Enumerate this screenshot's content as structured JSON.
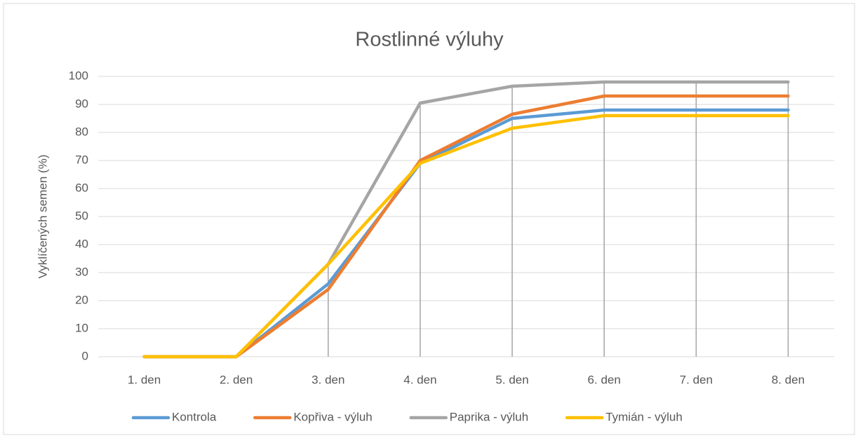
{
  "chart_data": {
    "type": "line",
    "title": "Rostlinné výluhy",
    "y_label": "Vyklíčených semen (%)",
    "categories": [
      "1. den",
      "2. den",
      "3. den",
      "4. den",
      "5. den",
      "6. den",
      "7. den",
      "8. den"
    ],
    "series": [
      {
        "name": "Kontrola",
        "color": "#5b9bd5",
        "values": [
          0,
          0,
          26,
          69,
          85,
          88,
          88,
          88
        ]
      },
      {
        "name": "Kopřiva - výluh",
        "color": "#ed7d31",
        "values": [
          0,
          0,
          24,
          70,
          86.5,
          93,
          93,
          93
        ]
      },
      {
        "name": "Paprika - výluh",
        "color": "#a5a5a5",
        "values": [
          0,
          0,
          33,
          90.5,
          96.5,
          98,
          98,
          98
        ]
      },
      {
        "name": "Tymián - výluh",
        "color": "#ffc000",
        "values": [
          0,
          0,
          33,
          69,
          81.5,
          86,
          86,
          86
        ]
      }
    ],
    "ylim": [
      0,
      100
    ],
    "yticks": [
      0,
      10,
      20,
      30,
      40,
      50,
      60,
      70,
      80,
      90,
      100
    ],
    "grid": true,
    "drop_lines": true,
    "legend": "bottom"
  }
}
